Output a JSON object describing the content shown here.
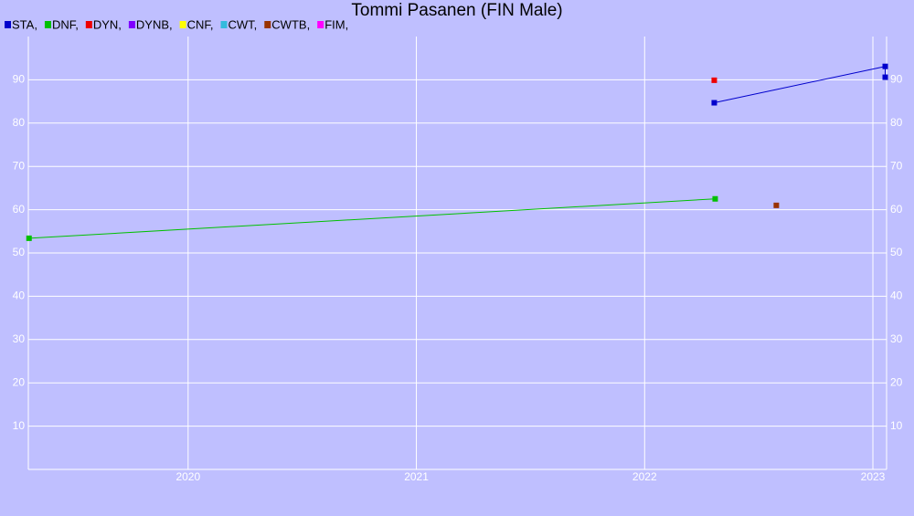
{
  "chart_data": {
    "type": "line",
    "title": "Tommi Pasanen (FIN Male)",
    "series": [
      {
        "name": "STA,",
        "color": "#0000cc",
        "x": [
          2022.305,
          2023.054,
          2023.054
        ],
        "values": [
          84.7,
          93.1,
          90.6
        ]
      },
      {
        "name": "DNF,",
        "color": "#00c000",
        "x": [
          2019.303,
          2022.309
        ],
        "values": [
          53.4,
          62.5
        ]
      },
      {
        "name": "DYN,",
        "color": "#ee0000",
        "x": [
          2022.305
        ],
        "values": [
          89.9
        ]
      },
      {
        "name": "DYNB,",
        "color": "#7f00ff",
        "x": [],
        "values": []
      },
      {
        "name": "CNF,",
        "color": "#ffff00",
        "x": [],
        "values": []
      },
      {
        "name": "CWT,",
        "color": "#33bbdd",
        "x": [],
        "values": []
      },
      {
        "name": "CWTB,",
        "color": "#993300",
        "x": [
          2022.577
        ],
        "values": [
          61.0
        ]
      },
      {
        "name": "FIM,",
        "color": "#ff00ff",
        "x": [],
        "values": []
      }
    ],
    "xlim": [
      2019.3,
      2023.06
    ],
    "xticks": [
      2020,
      2021,
      2022,
      2023
    ],
    "ylim": [
      0,
      100
    ],
    "yticks": [
      10,
      20,
      30,
      40,
      50,
      60,
      70,
      80,
      90
    ],
    "grid": true
  }
}
